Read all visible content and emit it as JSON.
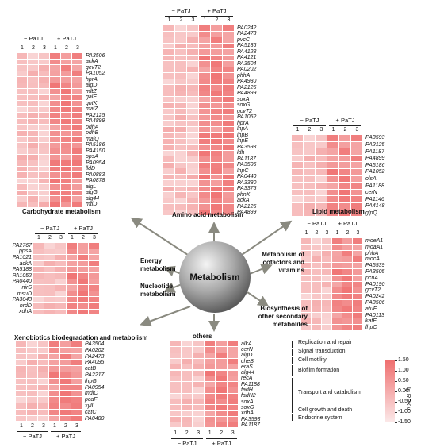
{
  "center": {
    "label": "Metabolism"
  },
  "group_labels": {
    "minus": "− PaTJ",
    "plus": "+ PaTJ",
    "cols": [
      "1",
      "2",
      "3"
    ]
  },
  "legend": {
    "ticks": [
      "1.50",
      "1.00",
      "0.50",
      "0.00",
      "-0.50",
      "-1.00",
      "-1.50"
    ],
    "axis_label": "lg RPKM",
    "colors": {
      "high": "#ef6f6f",
      "low": "#fbe9e9"
    }
  },
  "panels": {
    "carbohydrate": {
      "title": "Carbohydrate metabolism",
      "genes": [
        "PA3506",
        "ackA",
        "gcvT2",
        "PA1052",
        "hprA",
        "algD",
        "mltZ",
        "galE",
        "gntK",
        "malZ",
        "PA2125",
        "PA4899",
        "pdhA",
        "pdhB",
        "malQ",
        "PA5186",
        "PA4150",
        "ppsA",
        "PA0954",
        "lldD",
        "PA0883",
        "PA0878",
        "algL",
        "algG",
        "alg44",
        "mtlD"
      ]
    },
    "amino": {
      "title": "Amino acid metabolism",
      "genes": [
        "PA0242",
        "PA2473",
        "pvcC",
        "PA5186",
        "PA4128",
        "PA4121",
        "PA3504",
        "PA0202",
        "phhA",
        "PA4980",
        "PA2125",
        "PA4899",
        "soxA",
        "soxG",
        "gcvT2",
        "PA1052",
        "hprA",
        "lhpA",
        "lhpB",
        "lhpE",
        "PA3593",
        "ldh",
        "PA1187",
        "PA3506",
        "lhpC",
        "PA0440",
        "PA3380",
        "PA3375",
        "phnX",
        "ackA",
        "PA2125",
        "PA4899"
      ]
    },
    "lipid": {
      "title": "Lipid metabolism",
      "genes": [
        "PA3593",
        "PA2125",
        "PA1187",
        "PA4899",
        "PA5186",
        "PA1052",
        "olsA",
        "PA1188",
        "cerN",
        "PA1146",
        "PA4148",
        "glpQ"
      ]
    },
    "energy": {
      "genes": [
        "PA2767",
        "ppsA",
        "PA1021",
        "ackA",
        "PA5188",
        "PA1052",
        "PA0440",
        "nirS",
        "msuD",
        "PA3043",
        "nrdD",
        "xdhA"
      ],
      "label_energy": "Energy metabolism",
      "label_nucleotide": "Nucleotide metabolism"
    },
    "cofactors": {
      "genes": [
        "moeA1",
        "moaA1",
        "phhA",
        "mocA",
        "PA5539",
        "PA3505",
        "pcnA",
        "PA0190",
        "gcvT2",
        "PA0242",
        "PA3506",
        "atuE",
        "PA0113",
        "katE",
        "lhpC"
      ],
      "label_cofactors": "Metabolism of cofactors and vitamins",
      "label_secondary": "Biosynthesis of other secondary metabolites"
    },
    "xenobiotics": {
      "title": "Xenobiotics biodegradation and metabolism",
      "genes": [
        "PA3504",
        "PA0202",
        "PA2473",
        "PA4095",
        "catB",
        "PA2217",
        "lhpG",
        "PA0954",
        "mdlC",
        "pcaF",
        "xylL",
        "catC",
        "PA0480"
      ]
    },
    "others": {
      "title": "others",
      "genes": [
        "alkA",
        "cerN",
        "algD",
        "cheB",
        "eraS",
        "alg44",
        "recA",
        "PA1188",
        "fadH",
        "fadH2",
        "soxA",
        "soxG",
        "xdhA",
        "PA3593",
        "PA1187"
      ],
      "categories": [
        "Replication and repair",
        "Signal transduction",
        "Cell motility",
        "Biofilm formation",
        "Transport and catabolism",
        "Cell growth and death",
        "Endocrine system"
      ]
    }
  }
}
